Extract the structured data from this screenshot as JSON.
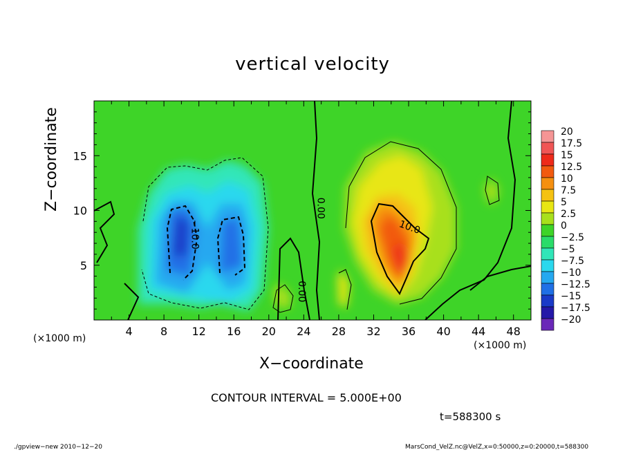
{
  "chart_data": {
    "type": "heatmap",
    "title": "vertical velocity",
    "xlabel": "X−coordinate",
    "ylabel": "Z−coordinate",
    "x_unit_left": "(×1000 m)",
    "x_unit_right": "(×1000 m)",
    "x_ticks": [
      "4",
      "8",
      "12",
      "16",
      "20",
      "24",
      "28",
      "32",
      "36",
      "40",
      "44",
      "48"
    ],
    "x_tick_values": [
      4,
      8,
      12,
      16,
      20,
      24,
      28,
      32,
      36,
      40,
      44,
      48
    ],
    "y_ticks": [
      "5",
      "10",
      "15"
    ],
    "y_tick_values": [
      5,
      10,
      15
    ],
    "xlim": [
      0,
      50
    ],
    "ylim": [
      0,
      20
    ],
    "colorbar": {
      "labels": [
        "20",
        "17.5",
        "15",
        "12.5",
        "10",
        "7.5",
        "5",
        "2.5",
        "0",
        "−2.5",
        "−5",
        "−7.5",
        "−10",
        "−12.5",
        "−15",
        "−17.5",
        "−20"
      ],
      "values": [
        20,
        17.5,
        15,
        12.5,
        10,
        7.5,
        5,
        2.5,
        0,
        -2.5,
        -5,
        -7.5,
        -10,
        -12.5,
        -15,
        -17.5,
        -20
      ],
      "colors": [
        "#f59595",
        "#f05555",
        "#ee2a1a",
        "#f25a0f",
        "#f59010",
        "#f5c212",
        "#e8e614",
        "#a8e01c",
        "#3ed428",
        "#2adc6a",
        "#30e6b8",
        "#2ad8ee",
        "#25a8f0",
        "#2070e6",
        "#1a3ac8",
        "#2418a8",
        "#6a28b8"
      ]
    },
    "contour_labels": [
      {
        "text": "−10.0",
        "x": 11.2,
        "y": 7.8
      },
      {
        "text": "0.00",
        "x": 25.6,
        "y": 10.2
      },
      {
        "text": "0.00",
        "x": 23.4,
        "y": 2.6
      },
      {
        "text": "10.0",
        "x": 36.0,
        "y": 8.2
      }
    ],
    "field_features": [
      {
        "kind": "downdraft",
        "center": [
          11,
          8
        ],
        "peak": -12
      },
      {
        "kind": "downdraft",
        "center": [
          15.5,
          8
        ],
        "peak": -9
      },
      {
        "kind": "updraft",
        "center": [
          35,
          5.5
        ],
        "peak": 14
      },
      {
        "kind": "updraft",
        "center": [
          29.5,
          2.6
        ],
        "peak": 6
      }
    ]
  },
  "contour_interval": "CONTOUR INTERVAL = 5.000E+00",
  "time_label": "t=588300  s",
  "footer_left": "./gpview−new   2010−12−20",
  "footer_right": "MarsCond_VelZ.nc@VelZ,x=0:50000,z=0:20000,t=588300"
}
